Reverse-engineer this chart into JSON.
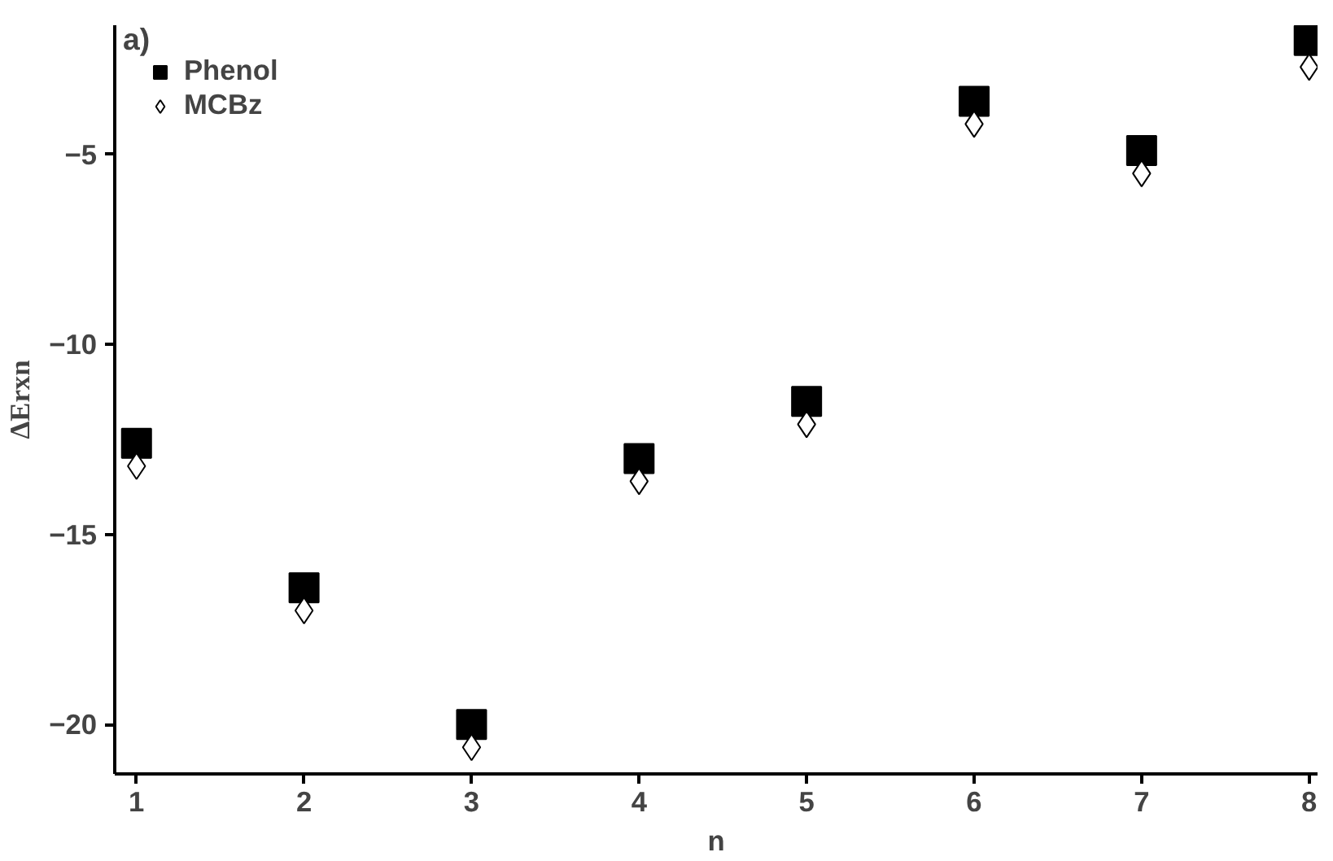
{
  "chart_data": {
    "type": "scatter",
    "xlabel": "n",
    "ylabel": "ΔErxn",
    "annotations": [
      "a)"
    ],
    "x": [
      1,
      2,
      3,
      4,
      5,
      6,
      7,
      8
    ],
    "series": [
      {
        "name": "Phenol",
        "color": "#000000",
        "marker": "square",
        "values": [
          -12.6,
          -16.4,
          -20.0,
          -13.0,
          -11.5,
          -3.6,
          -4.9,
          -2.0
        ]
      },
      {
        "name": "MCBz",
        "color": "#000000",
        "marker": "diamond",
        "values": [
          -13.2,
          -17.0,
          -20.6,
          -13.6,
          -12.1,
          -4.2,
          -5.5,
          -2.7
        ]
      }
    ],
    "xlim": [
      0.87,
      8.05
    ],
    "ylim": [
      -21.3,
      -1.6
    ],
    "xticks": [
      1,
      2,
      3,
      4,
      5,
      6,
      7,
      8
    ],
    "yticks": [
      -5,
      -10,
      -15,
      -20
    ],
    "grid": false,
    "legend": "top left"
  }
}
